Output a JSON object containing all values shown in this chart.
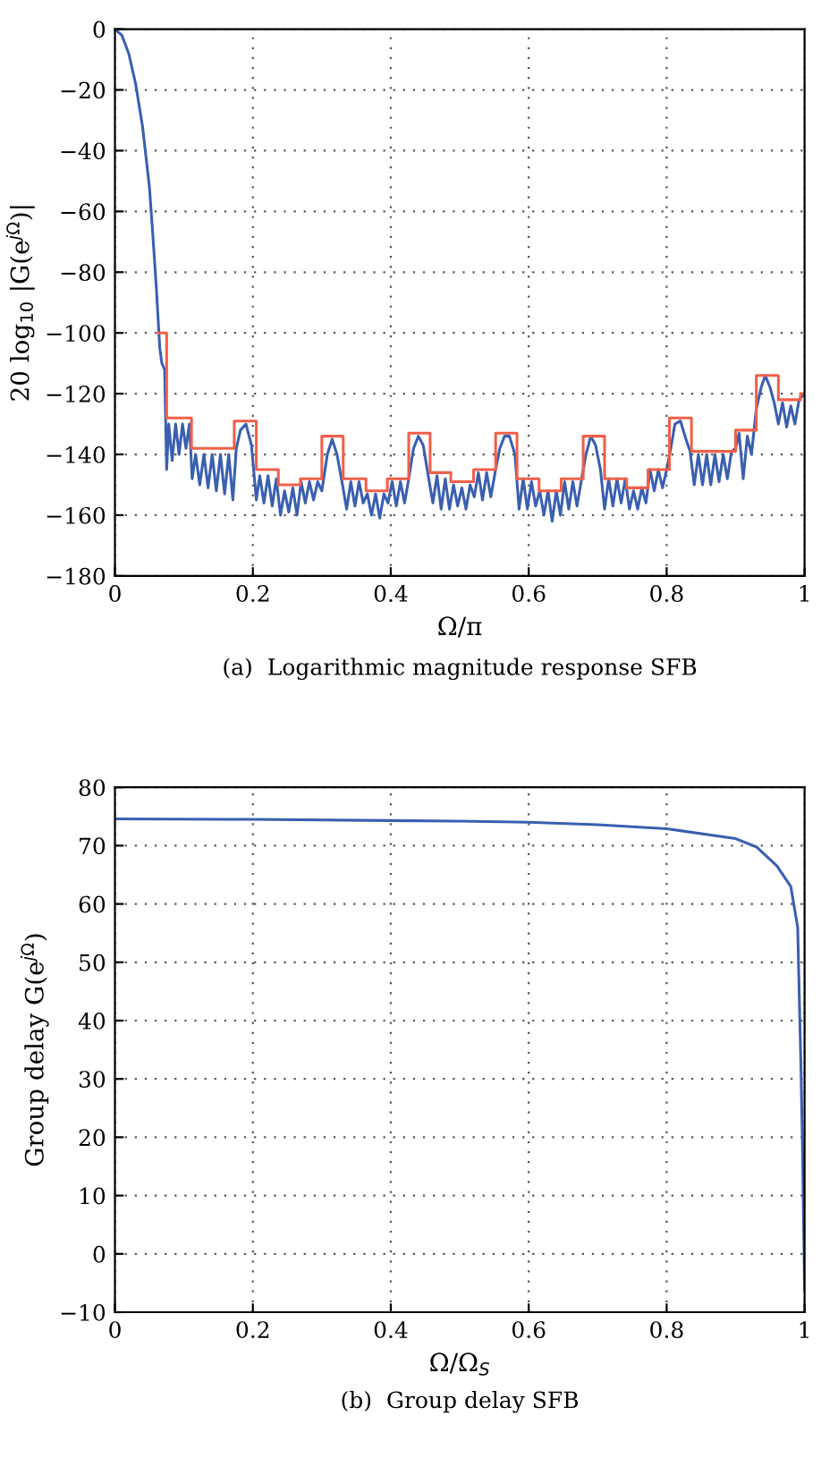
{
  "chart_data": [
    {
      "type": "line",
      "xlabel": "Ω/π",
      "ylabel": "20 log$_{10}$ |G(e$^{jΩ}$)|",
      "annotations": [
        "(a)  Logarithmic magnitude response SFB"
      ],
      "xlim": [
        0,
        1
      ],
      "ylim": [
        -180,
        0
      ],
      "xticks": [
        0,
        0.2,
        0.4,
        0.6,
        0.8,
        1
      ],
      "yticks": [
        -180,
        -160,
        -140,
        -120,
        -100,
        -80,
        -60,
        -40,
        -20,
        0
      ],
      "grid": true,
      "marker": "none",
      "line_style": "solid",
      "series": [
        {
          "color": "#3a5fb0",
          "x": [
            0,
            0.01,
            0.02,
            0.03,
            0.04,
            0.05,
            0.055,
            0.06,
            0.065,
            0.068,
            0.072,
            0.075,
            0.078,
            0.083,
            0.088,
            0.093,
            0.098,
            0.103,
            0.108,
            0.112,
            0.117,
            0.123,
            0.129,
            0.135,
            0.141,
            0.147,
            0.153,
            0.159,
            0.165,
            0.171,
            0.176,
            0.182,
            0.19,
            0.198,
            0.205,
            0.21,
            0.216,
            0.222,
            0.228,
            0.234,
            0.24,
            0.246,
            0.252,
            0.258,
            0.264,
            0.27,
            0.276,
            0.282,
            0.288,
            0.294,
            0.3,
            0.308,
            0.315,
            0.322,
            0.33,
            0.336,
            0.342,
            0.348,
            0.354,
            0.36,
            0.366,
            0.372,
            0.378,
            0.384,
            0.39,
            0.396,
            0.402,
            0.408,
            0.414,
            0.42,
            0.426,
            0.433,
            0.44,
            0.447,
            0.455,
            0.461,
            0.467,
            0.473,
            0.479,
            0.485,
            0.491,
            0.497,
            0.503,
            0.509,
            0.515,
            0.521,
            0.527,
            0.533,
            0.539,
            0.545,
            0.552,
            0.558,
            0.565,
            0.572,
            0.58,
            0.586,
            0.592,
            0.598,
            0.604,
            0.61,
            0.616,
            0.622,
            0.628,
            0.634,
            0.64,
            0.646,
            0.652,
            0.658,
            0.664,
            0.67,
            0.676,
            0.683,
            0.69,
            0.697,
            0.704,
            0.71,
            0.716,
            0.722,
            0.728,
            0.734,
            0.74,
            0.746,
            0.752,
            0.758,
            0.764,
            0.77,
            0.776,
            0.782,
            0.788,
            0.794,
            0.8,
            0.806,
            0.812,
            0.82,
            0.828,
            0.834,
            0.84,
            0.846,
            0.852,
            0.858,
            0.864,
            0.87,
            0.876,
            0.882,
            0.888,
            0.894,
            0.9,
            0.905,
            0.911,
            0.917,
            0.923,
            0.93,
            0.937,
            0.943,
            0.95,
            0.956,
            0.962,
            0.968,
            0.974,
            0.98,
            0.986,
            0.992,
            1.0
          ],
          "values": [
            0,
            -2,
            -8,
            -18,
            -32,
            -52,
            -68,
            -85,
            -105,
            -110,
            -112,
            -145,
            -130,
            -142,
            -130,
            -140,
            -130,
            -138,
            -130,
            -148,
            -140,
            -150,
            -140,
            -151,
            -140,
            -152,
            -140,
            -153,
            -140,
            -155,
            -138,
            -132,
            -130,
            -137,
            -155,
            -147,
            -156,
            -147,
            -157,
            -148,
            -160,
            -152,
            -159,
            -151,
            -160,
            -149,
            -156,
            -149,
            -155,
            -149,
            -152,
            -140,
            -135,
            -140,
            -150,
            -158,
            -149,
            -157,
            -149,
            -156,
            -153,
            -160,
            -153,
            -161,
            -153,
            -156,
            -149,
            -157,
            -149,
            -156,
            -148,
            -138,
            -134,
            -137,
            -148,
            -156,
            -147,
            -158,
            -148,
            -158,
            -150,
            -157,
            -151,
            -158,
            -150,
            -154,
            -146,
            -155,
            -146,
            -154,
            -145,
            -138,
            -134,
            -134,
            -140,
            -158,
            -148,
            -158,
            -149,
            -157,
            -152,
            -160,
            -152,
            -162,
            -152,
            -160,
            -149,
            -158,
            -149,
            -157,
            -149,
            -140,
            -134,
            -137,
            -145,
            -158,
            -148,
            -157,
            -148,
            -156,
            -148,
            -158,
            -152,
            -158,
            -151,
            -156,
            -145,
            -152,
            -145,
            -151,
            -145,
            -138,
            -130,
            -129,
            -135,
            -139,
            -150,
            -140,
            -150,
            -140,
            -150,
            -140,
            -149,
            -140,
            -148,
            -139,
            -138,
            -133,
            -148,
            -134,
            -140,
            -125,
            -118,
            -114,
            -118,
            -123,
            -130,
            -123,
            -131,
            -124,
            -130,
            -122,
            -120
          ]
        },
        {
          "type": "step",
          "color": "#f0604a",
          "x": [
            0.063,
            0.075,
            0.111,
            0.173,
            0.205,
            0.237,
            0.269,
            0.3,
            0.331,
            0.364,
            0.395,
            0.426,
            0.457,
            0.487,
            0.52,
            0.552,
            0.583,
            0.615,
            0.647,
            0.679,
            0.71,
            0.742,
            0.773,
            0.804,
            0.836,
            0.9,
            0.93,
            0.962,
            0.994,
            1
          ],
          "values": [
            -100,
            -128,
            -138,
            -129,
            -145,
            -150,
            -148,
            -134,
            -148,
            -152,
            -148,
            -133,
            -146,
            -149,
            -145,
            -133,
            -148,
            -152,
            -148,
            -134,
            -148,
            -151,
            -145,
            -128,
            -139,
            -132,
            -114,
            -122,
            -120,
            -120
          ]
        }
      ]
    },
    {
      "type": "line",
      "xlabel": "Ω/Ω$_{S}$",
      "ylabel": "Group delay G(e$^{jΩ}$)",
      "annotations": [
        "(b)  Group delay SFB"
      ],
      "xlim": [
        0,
        1
      ],
      "ylim": [
        -10,
        80
      ],
      "xticks": [
        0,
        0.2,
        0.4,
        0.6,
        0.8,
        1
      ],
      "yticks": [
        -10,
        0,
        10,
        20,
        30,
        40,
        50,
        60,
        70,
        80
      ],
      "grid": true,
      "marker": "none",
      "line_style": "solid",
      "series": [
        {
          "color": "#3a5fb0",
          "x": [
            0,
            0.2,
            0.4,
            0.5,
            0.6,
            0.7,
            0.8,
            0.9,
            0.93,
            0.96,
            0.98,
            0.99,
            0.995,
            0.997,
            1.0
          ],
          "values": [
            74.6,
            74.5,
            74.3,
            74.2,
            74.0,
            73.6,
            72.9,
            71.2,
            69.8,
            66.5,
            63,
            56,
            30.6,
            18,
            -6
          ]
        }
      ]
    }
  ]
}
